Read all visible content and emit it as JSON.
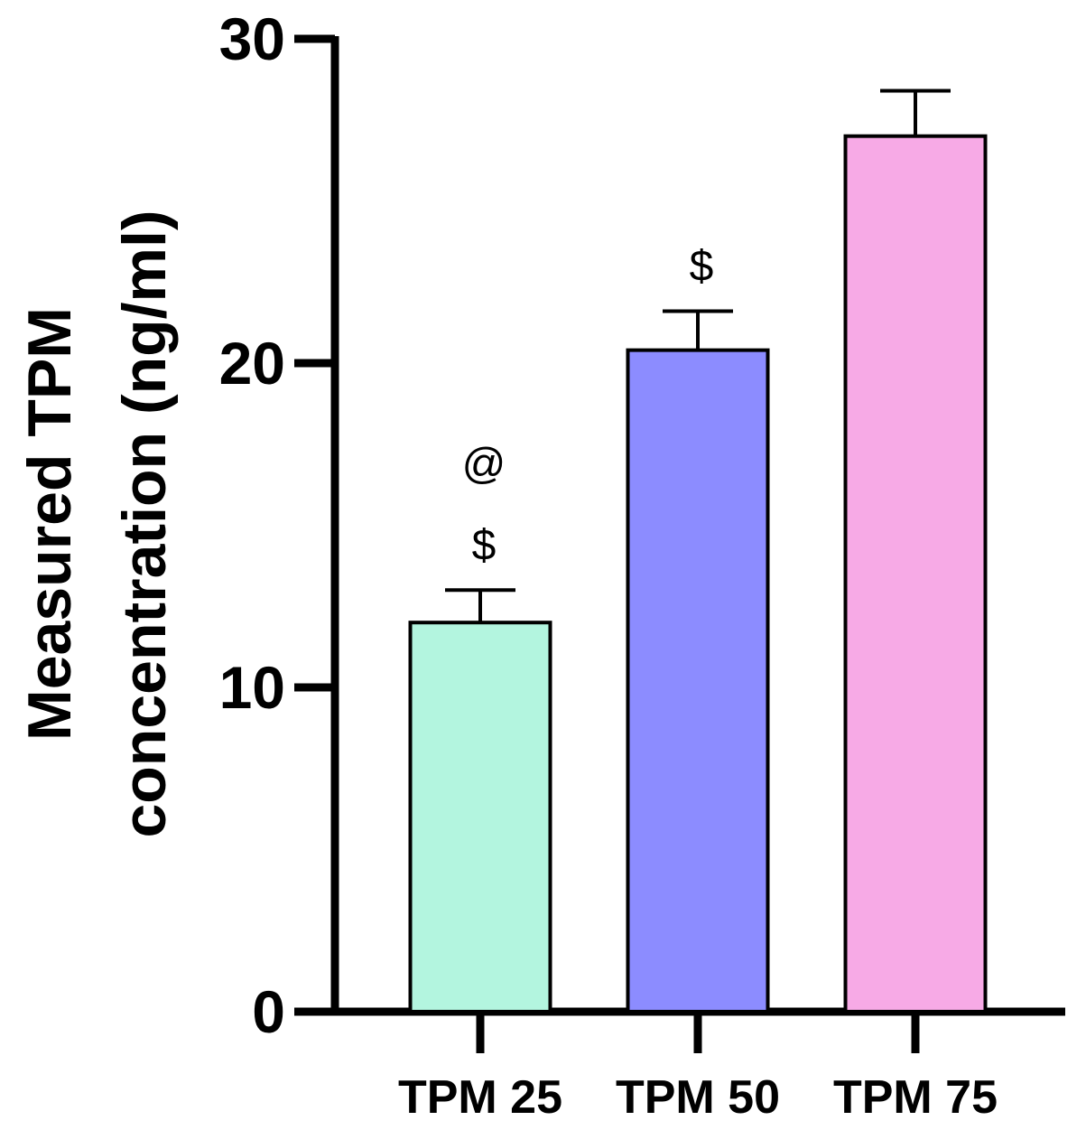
{
  "chart_data": {
    "type": "bar",
    "title": "",
    "xlabel": "",
    "ylabel_lines": [
      "Measured TPM",
      "concentration (ng/ml)"
    ],
    "ylim": [
      0,
      30
    ],
    "yticks": [
      0,
      10,
      20,
      30
    ],
    "ytick_labels": [
      "0",
      "10",
      "20",
      "30"
    ],
    "categories": [
      "TPM 25",
      "TPM 50",
      "TPM 75"
    ],
    "values": [
      12.0,
      20.4,
      27.0
    ],
    "error_upper": [
      1.0,
      1.2,
      1.4
    ],
    "annotations": [
      [
        "@",
        "$"
      ],
      [
        "$"
      ],
      []
    ],
    "colors": [
      "#b3f5df",
      "#8c8cff",
      "#f7aae6"
    ],
    "grid": false,
    "legend": "none"
  }
}
